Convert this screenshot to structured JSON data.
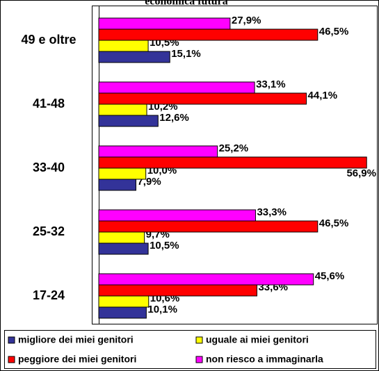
{
  "chart_data": {
    "type": "hbar",
    "title": "economica futura",
    "categories": [
      "49 e oltre",
      "41-48",
      "33-40",
      "25-32",
      "17-24"
    ],
    "series": [
      {
        "name": "migliore dei miei genitori",
        "color": "#333399",
        "values": [
          15.1,
          12.6,
          7.9,
          10.5,
          10.1
        ],
        "value_labels": [
          "15,1%",
          "12,6%",
          "7,9%",
          "10,5%",
          "10,1%"
        ]
      },
      {
        "name": "uguale ai miei genitori",
        "color": "#ffff00",
        "values": [
          10.5,
          10.2,
          10.0,
          9.7,
          10.6
        ],
        "value_labels": [
          "10,5%",
          "10,2%",
          "10,0%",
          "9,7%",
          "10,6%"
        ]
      },
      {
        "name": "peggiore dei miei genitori",
        "color": "#ff0000",
        "values": [
          46.5,
          44.1,
          56.9,
          46.5,
          33.6
        ],
        "value_labels": [
          "46,5%",
          "44,1%",
          "56,9%",
          "46,5%",
          "33,6%"
        ]
      },
      {
        "name": "non riesco a immaginarla",
        "color": "#ff00ff",
        "values": [
          27.9,
          33.1,
          25.2,
          33.3,
          45.6
        ],
        "value_labels": [
          "27,9%",
          "33,1%",
          "25,2%",
          "33,3%",
          "45,6%"
        ]
      }
    ],
    "legend": "bottom"
  }
}
